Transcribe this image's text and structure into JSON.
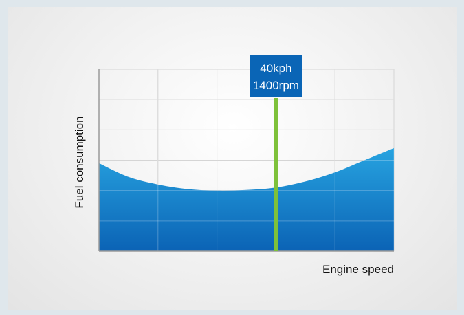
{
  "chart_data": {
    "type": "area",
    "xlabel": "Engine speed",
    "ylabel": "Fuel consumption",
    "xlim": [
      0,
      5
    ],
    "ylim": [
      0,
      6
    ],
    "grid": true,
    "series": [
      {
        "x": [
          0,
          0.5,
          1,
          1.5,
          2,
          2.5,
          3,
          3.5,
          4,
          4.5,
          5
        ],
        "values": [
          2.9,
          2.45,
          2.2,
          2.05,
          2.0,
          2.02,
          2.1,
          2.3,
          2.6,
          3.0,
          3.4
        ]
      }
    ],
    "marker": {
      "x": 3.0,
      "line1": "40kph",
      "line2": "1400rpm"
    },
    "colors": {
      "area_top": "#27a3e0",
      "area_bottom": "#0b63b5",
      "marker_line": "#7ec13a",
      "marker_box": "#0a65b6",
      "grid": "#c8c8c8"
    }
  }
}
